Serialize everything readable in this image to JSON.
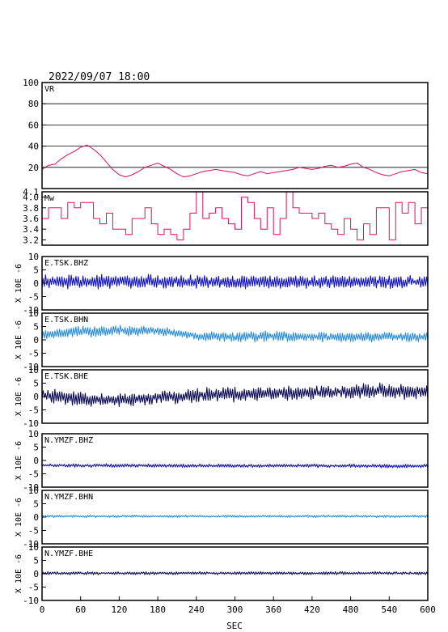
{
  "header": {
    "timestamp": "2022/09/07 18:00"
  },
  "x_axis": {
    "label": "SEC",
    "ticks": [
      "0",
      "60",
      "120",
      "180",
      "240",
      "300",
      "360",
      "420",
      "480",
      "540",
      "600"
    ]
  },
  "chart_data": [
    {
      "type": "line",
      "panel": "VR",
      "label": "VR",
      "ylim": [
        0,
        100
      ],
      "ticks": [
        "20",
        "40",
        "60",
        "80",
        "100"
      ],
      "grid": true,
      "color": "#dd1155",
      "x": [
        0,
        10,
        20,
        30,
        40,
        50,
        60,
        70,
        80,
        90,
        100,
        110,
        120,
        130,
        140,
        150,
        160,
        170,
        180,
        190,
        200,
        210,
        220,
        230,
        240,
        250,
        260,
        270,
        280,
        290,
        300,
        310,
        320,
        330,
        340,
        350,
        360,
        370,
        380,
        390,
        400,
        410,
        420,
        430,
        440,
        450,
        460,
        470,
        480,
        490,
        500,
        510,
        520,
        530,
        540,
        550,
        560,
        570,
        580,
        590,
        600
      ],
      "values": [
        18,
        22,
        23,
        28,
        32,
        35,
        39,
        41,
        37,
        32,
        25,
        18,
        13,
        11,
        13,
        16,
        20,
        22,
        24,
        21,
        18,
        14,
        11,
        12,
        14,
        16,
        17,
        18,
        17,
        16,
        15,
        13,
        12,
        14,
        16,
        14,
        15,
        16,
        17,
        18,
        20,
        19,
        18,
        19,
        21,
        22,
        20,
        21,
        23,
        24,
        20,
        18,
        15,
        13,
        12,
        14,
        16,
        17,
        18,
        15,
        14
      ]
    },
    {
      "type": "line",
      "panel": "Mw",
      "label": "Mw",
      "ylim": [
        3.1,
        4.1
      ],
      "ticks": [
        "3.2",
        "3.4",
        "3.6",
        "3.8",
        "4.0",
        "4.1"
      ],
      "color": "#dd1155",
      "x": [
        0,
        10,
        20,
        30,
        40,
        50,
        60,
        70,
        80,
        90,
        100,
        110,
        120,
        130,
        140,
        150,
        160,
        170,
        180,
        190,
        200,
        210,
        220,
        230,
        240,
        250,
        260,
        270,
        280,
        290,
        300,
        310,
        320,
        330,
        340,
        350,
        360,
        370,
        380,
        390,
        400,
        410,
        420,
        430,
        440,
        450,
        460,
        470,
        480,
        490,
        500,
        510,
        520,
        530,
        540,
        550,
        560,
        570,
        580,
        590,
        600
      ],
      "values": [
        3.6,
        3.8,
        3.8,
        3.6,
        3.9,
        3.8,
        3.9,
        3.9,
        3.6,
        3.5,
        3.7,
        3.4,
        3.4,
        3.3,
        3.6,
        3.6,
        3.8,
        3.5,
        3.3,
        3.4,
        3.3,
        3.2,
        3.4,
        3.7,
        4.1,
        3.6,
        3.7,
        3.8,
        3.6,
        3.5,
        3.4,
        4.0,
        3.9,
        3.6,
        3.4,
        3.8,
        3.3,
        3.6,
        4.1,
        3.8,
        3.7,
        3.7,
        3.6,
        3.7,
        3.5,
        3.4,
        3.3,
        3.6,
        3.4,
        3.2,
        3.5,
        3.3,
        3.8,
        3.8,
        3.2,
        3.9,
        3.7,
        3.9,
        3.5,
        3.8,
        3.7
      ]
    },
    {
      "type": "line",
      "panel": "E.TSK.BHZ",
      "label": "E.TSK.BHZ",
      "ylabel": "X 10E -6",
      "ylim": [
        -10,
        10
      ],
      "ticks": [
        "10",
        "5",
        "0",
        "-5",
        "-10"
      ],
      "color": "#1010c8",
      "x": [
        0,
        60,
        120,
        180,
        240,
        300,
        360,
        420,
        480,
        540,
        600
      ],
      "baseline": [
        0.5,
        0.6,
        0.7,
        0.5,
        0.6,
        0.4,
        0.5,
        0.5,
        0.6,
        0.5,
        0.5
      ],
      "amplitude": [
        2.2,
        2.6,
        2.7,
        2.5,
        2.2,
        2.3,
        2.4,
        2.2,
        2.2,
        2.3,
        2.2
      ]
    },
    {
      "type": "line",
      "panel": "E.TSK.BHN",
      "label": "E.TSK.BHN",
      "ylabel": "X 10E -6",
      "ylim": [
        -10,
        10
      ],
      "ticks": [
        "10",
        "5",
        "0",
        "-5",
        "-10"
      ],
      "color": "#2a8de0",
      "x": [
        0,
        60,
        120,
        180,
        240,
        300,
        360,
        420,
        480,
        540,
        600
      ],
      "baseline": [
        2.0,
        3.0,
        3.5,
        3.2,
        1.5,
        1.0,
        1.5,
        1.2,
        1.0,
        1.2,
        1.0
      ],
      "amplitude": [
        1.6,
        1.9,
        1.8,
        1.7,
        1.6,
        1.8,
        1.9,
        1.7,
        1.6,
        1.6,
        1.6
      ]
    },
    {
      "type": "line",
      "panel": "E.TSK.BHE",
      "label": "E.TSK.BHE",
      "ylabel": "X 10E -6",
      "ylim": [
        -10,
        10
      ],
      "ticks": [
        "10",
        "5",
        "0",
        "-5",
        "-10"
      ],
      "color": "#0a0a55",
      "x": [
        0,
        60,
        120,
        180,
        240,
        300,
        360,
        420,
        480,
        540,
        600
      ],
      "baseline": [
        0.5,
        -1.0,
        -1.5,
        -0.5,
        0.5,
        1.0,
        1.0,
        1.5,
        1.8,
        2.0,
        1.5
      ],
      "amplitude": [
        2.3,
        2.5,
        2.4,
        2.2,
        2.6,
        2.7,
        2.4,
        2.4,
        2.5,
        2.7,
        2.4
      ]
    },
    {
      "type": "line",
      "panel": "N.YMZF.BHZ",
      "label": "N.YMZF.BHZ",
      "ylabel": "X 10E -6",
      "ylim": [
        -10,
        10
      ],
      "ticks": [
        "10",
        "5",
        "0",
        "-5",
        "-10"
      ],
      "color": "#1010c8",
      "x": [
        0,
        60,
        120,
        180,
        240,
        300,
        360,
        420,
        480,
        540,
        600
      ],
      "baseline": [
        -1.8,
        -1.9,
        -1.9,
        -2.0,
        -2.0,
        -2.0,
        -2.0,
        -2.0,
        -2.0,
        -2.1,
        -2.1
      ],
      "amplitude": [
        0.6,
        0.6,
        0.6,
        0.6,
        0.6,
        0.6,
        0.6,
        0.6,
        0.6,
        0.6,
        0.6
      ]
    },
    {
      "type": "line",
      "panel": "N.YMZF.BHN",
      "label": "N.YMZF.BHN",
      "ylabel": "X 10E -6",
      "ylim": [
        -10,
        10
      ],
      "ticks": [
        "10",
        "5",
        "0",
        "-5",
        "-10"
      ],
      "color": "#2a8de0",
      "x": [
        0,
        60,
        120,
        180,
        240,
        300,
        360,
        420,
        480,
        540,
        600
      ],
      "baseline": [
        0.3,
        0.3,
        0.3,
        0.3,
        0.3,
        0.3,
        0.3,
        0.3,
        0.3,
        0.3,
        0.3
      ],
      "amplitude": [
        0.4,
        0.4,
        0.4,
        0.4,
        0.4,
        0.4,
        0.4,
        0.4,
        0.4,
        0.4,
        0.4
      ]
    },
    {
      "type": "line",
      "panel": "N.YMZF.BHE",
      "label": "N.YMZF.BHE",
      "ylabel": "X 10E -6",
      "ylim": [
        -10,
        10
      ],
      "ticks": [
        "10",
        "5",
        "0",
        "-5",
        "-10"
      ],
      "color": "#0a0a55",
      "x": [
        0,
        60,
        120,
        180,
        240,
        300,
        360,
        420,
        480,
        540,
        600
      ],
      "baseline": [
        0.2,
        0.2,
        0.2,
        0.2,
        0.2,
        0.2,
        0.2,
        0.2,
        0.2,
        0.2,
        0.2
      ],
      "amplitude": [
        0.5,
        0.5,
        0.5,
        0.5,
        0.5,
        0.5,
        0.5,
        0.5,
        0.5,
        0.5,
        0.5
      ]
    }
  ]
}
